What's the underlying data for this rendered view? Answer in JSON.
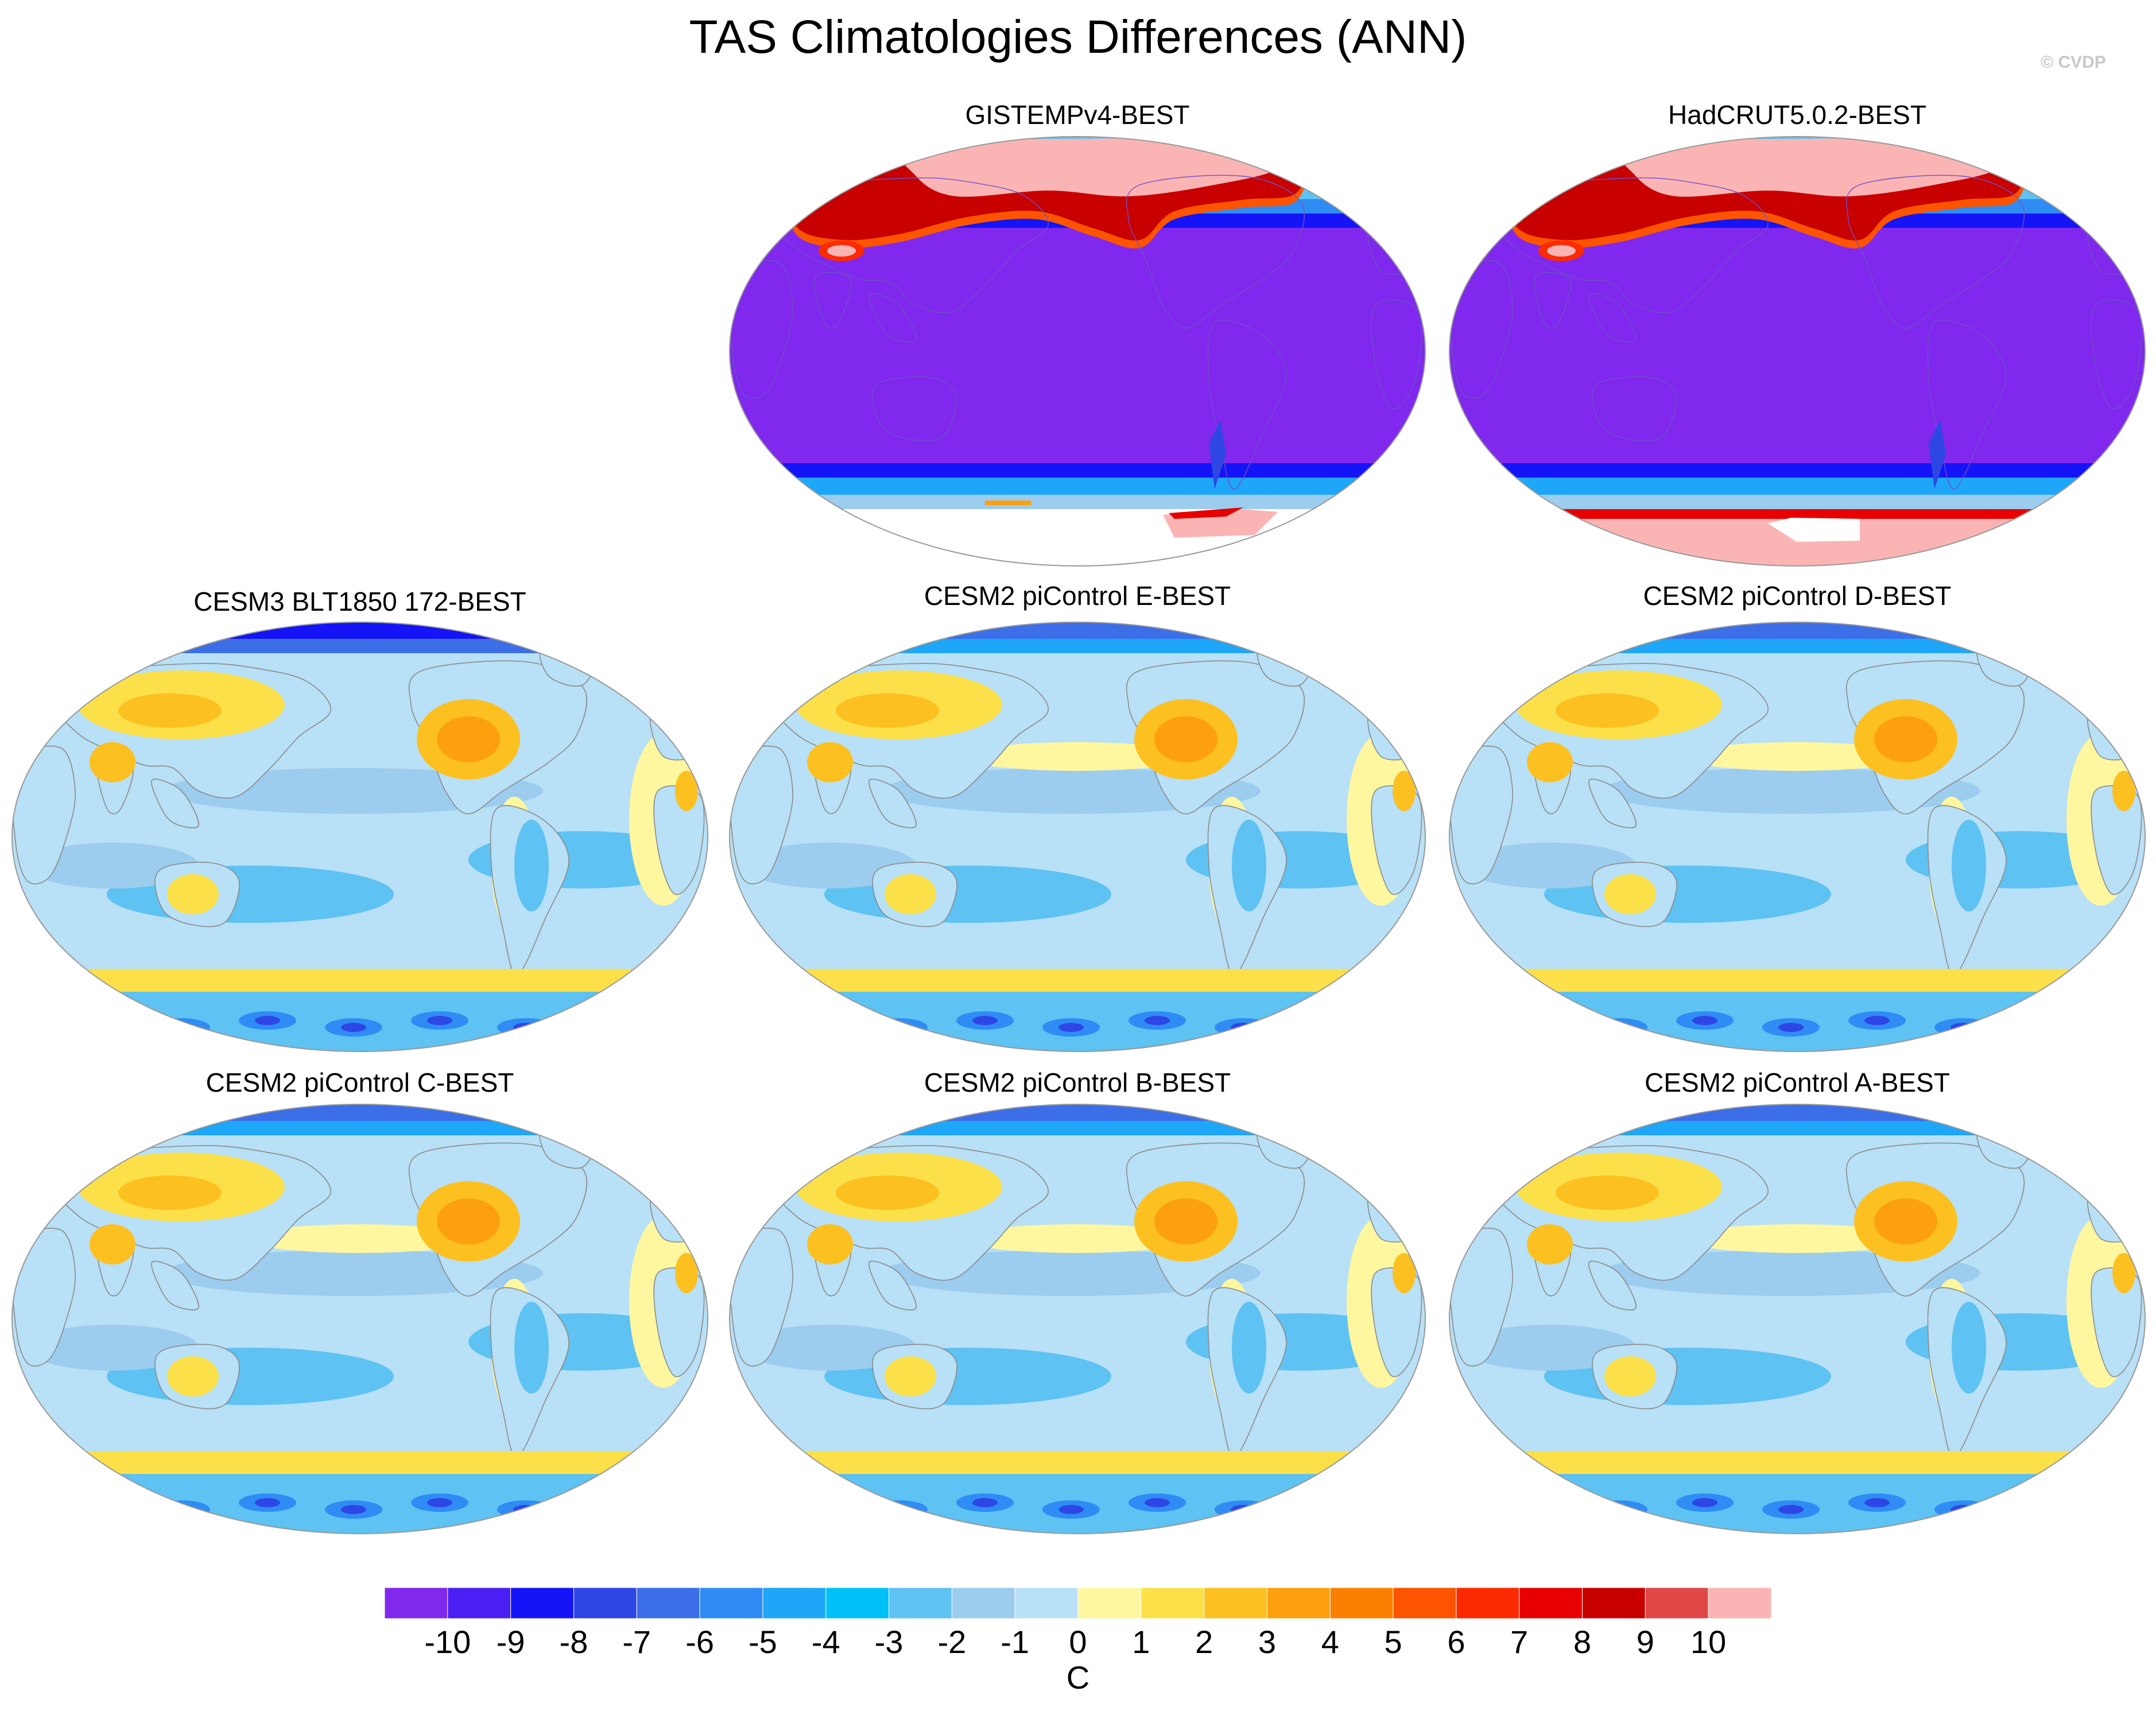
{
  "figure": {
    "title": "TAS Climatologies Differences (ANN)",
    "watermark": "© CVDP"
  },
  "chart_data": {
    "type": "heatmap",
    "projection": "Robinson",
    "variable": "TAS",
    "season": "ANN",
    "panels": [
      {
        "title": "GISTEMPv4-BEST",
        "pattern": "obs_gis"
      },
      {
        "title": "HadCRUT5.0.2-BEST",
        "pattern": "obs_had"
      },
      {
        "title": "CESM3 BLT1850 172-BEST",
        "pattern": "model_cesm3"
      },
      {
        "title": "CESM2 piControl E-BEST",
        "pattern": "model"
      },
      {
        "title": "CESM2 piControl D-BEST",
        "pattern": "model"
      },
      {
        "title": "CESM2 piControl C-BEST",
        "pattern": "model"
      },
      {
        "title": "CESM2 piControl B-BEST",
        "pattern": "model"
      },
      {
        "title": "CESM2 piControl A-BEST",
        "pattern": "model"
      }
    ],
    "colorbar": {
      "units": "C",
      "levels": [
        -10,
        -9,
        -8,
        -7,
        -6,
        -5,
        -4,
        -3,
        -2,
        -1,
        0,
        1,
        2,
        3,
        4,
        5,
        6,
        7,
        8,
        9,
        10
      ],
      "level_labels": [
        "-10",
        "-9",
        "-8",
        "-7",
        "-6",
        "-5",
        "-4",
        "-3",
        "-2",
        "-1",
        "0",
        "1",
        "2",
        "3",
        "4",
        "5",
        "6",
        "7",
        "8",
        "9",
        "10"
      ],
      "colors": [
        "#8028ee",
        "#4a1ff4",
        "#1414f6",
        "#2e46e6",
        "#3c6ee8",
        "#2f8cf4",
        "#1ea6f8",
        "#00c0f8",
        "#5ec2f2",
        "#9cccee",
        "#b8e0f6",
        "#fff7a0",
        "#fce04a",
        "#fcc020",
        "#fca010",
        "#fc8000",
        "#fc5400",
        "#fc2a00",
        "#e80000",
        "#c80000",
        "#e04848",
        "#fbb4b4"
      ]
    }
  }
}
